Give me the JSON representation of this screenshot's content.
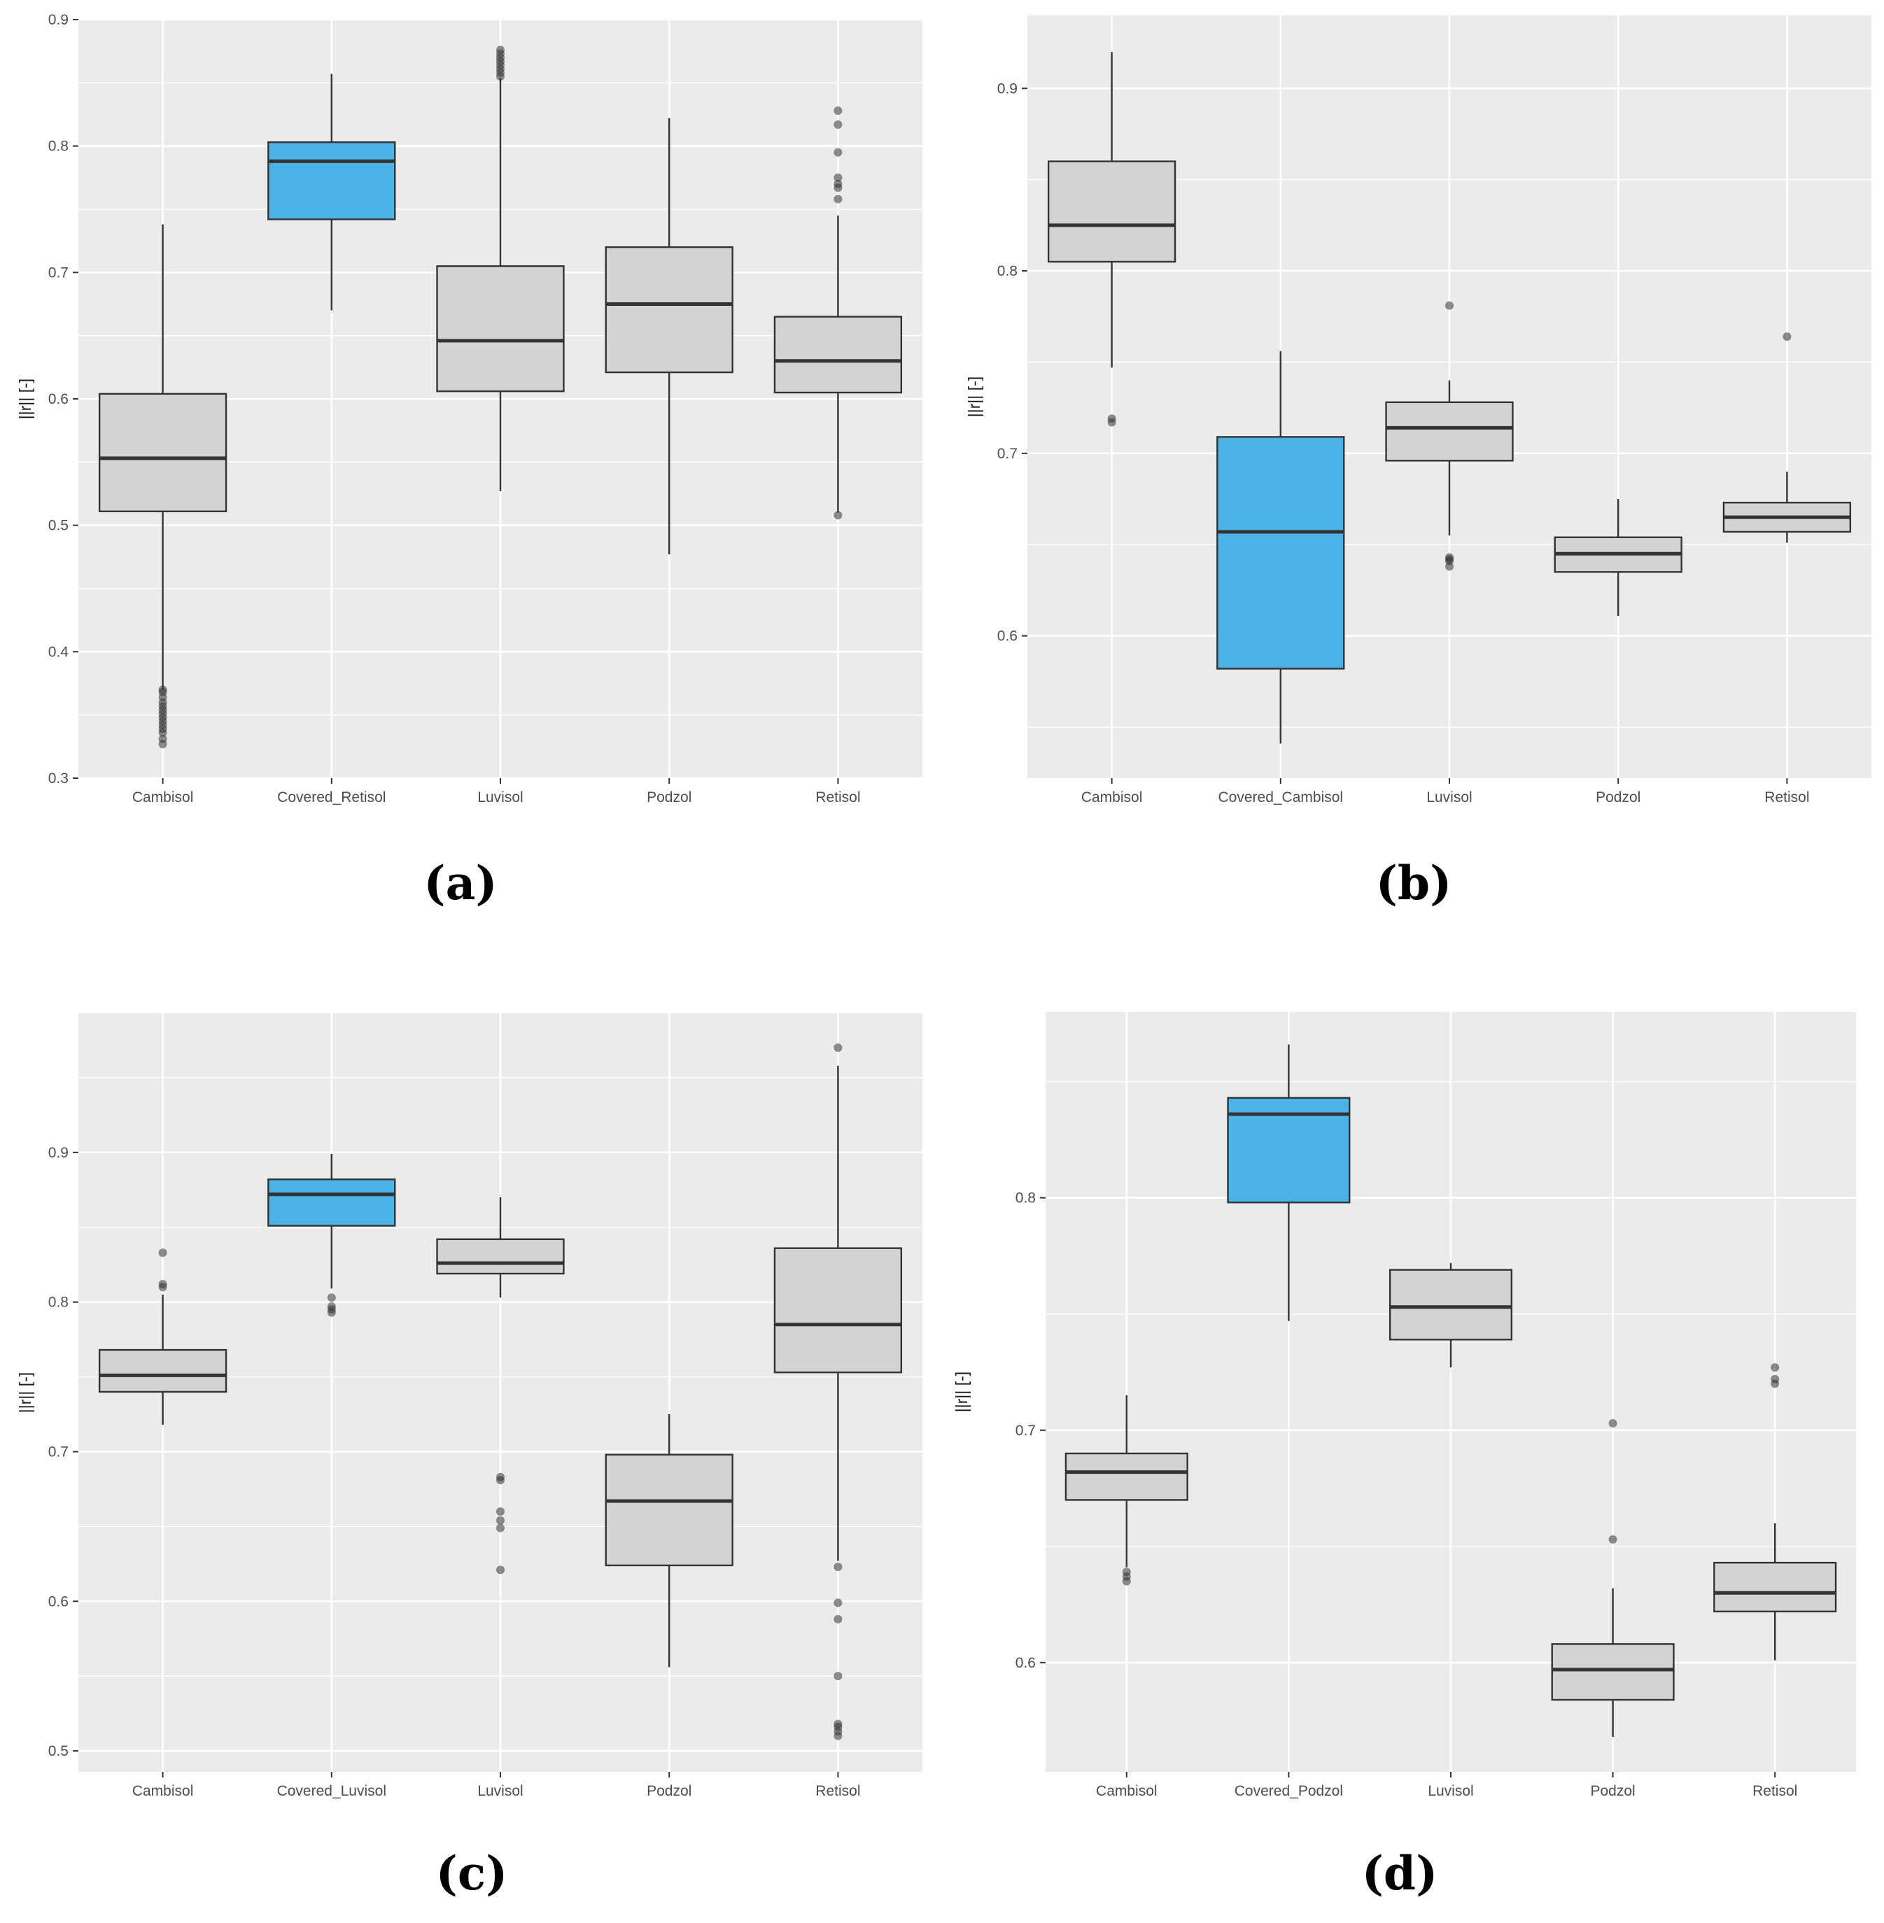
{
  "figure": {
    "fill_color": "#4DB3E6",
    "gray_fill": "#D3D3D3",
    "panel_bg": "#EBEBEB",
    "grid_color": "#FFFFFF",
    "outline": "#333333"
  },
  "chart_data": [
    {
      "type": "box",
      "panel_label": "(a)",
      "ylabel": "||r|| [-]",
      "ylim": [
        0.3,
        0.9
      ],
      "yticks": [
        0.3,
        0.4,
        0.5,
        0.6,
        0.7,
        0.8,
        0.9
      ],
      "ytick_labels": [
        "0.3",
        "0.4",
        "0.5",
        "0.6",
        "0.7",
        "0.8",
        "0.9"
      ],
      "categories": [
        "Cambisol",
        "Covered_Retisol",
        "Luvisol",
        "Podzol",
        "Retisol"
      ],
      "highlight": "Covered_Retisol",
      "boxes": [
        {
          "category": "Cambisol",
          "whisker_low": 0.37,
          "q1": 0.511,
          "median": 0.553,
          "q3": 0.604,
          "whisker_high": 0.738,
          "outliers": [
            0.327,
            0.331,
            0.336,
            0.339,
            0.342,
            0.345,
            0.348,
            0.351,
            0.354,
            0.357,
            0.36,
            0.364,
            0.368,
            0.37
          ]
        },
        {
          "category": "Covered_Retisol",
          "whisker_low": 0.67,
          "q1": 0.742,
          "median": 0.788,
          "q3": 0.803,
          "whisker_high": 0.857,
          "outliers": []
        },
        {
          "category": "Luvisol",
          "whisker_low": 0.527,
          "q1": 0.606,
          "median": 0.646,
          "q3": 0.705,
          "whisker_high": 0.854,
          "outliers": [
            0.855,
            0.858,
            0.861,
            0.864,
            0.867,
            0.87,
            0.873,
            0.876
          ]
        },
        {
          "category": "Podzol",
          "whisker_low": 0.477,
          "q1": 0.621,
          "median": 0.675,
          "q3": 0.72,
          "whisker_high": 0.822,
          "outliers": []
        },
        {
          "category": "Retisol",
          "whisker_low": 0.51,
          "q1": 0.605,
          "median": 0.63,
          "q3": 0.665,
          "whisker_high": 0.745,
          "outliers": [
            0.508,
            0.758,
            0.767,
            0.77,
            0.775,
            0.795,
            0.817,
            0.828
          ]
        }
      ]
    },
    {
      "type": "box",
      "panel_label": "(b)",
      "ylabel": "||r|| [-]",
      "ylim": [
        0.522,
        0.94
      ],
      "yticks": [
        0.6,
        0.7,
        0.8,
        0.9
      ],
      "ytick_labels": [
        "0.6",
        "0.7",
        "0.8",
        "0.9"
      ],
      "categories": [
        "Cambisol",
        "Covered_Cambisol",
        "Luvisol",
        "Podzol",
        "Retisol"
      ],
      "highlight": "Covered_Cambisol",
      "boxes": [
        {
          "category": "Cambisol",
          "whisker_low": 0.747,
          "q1": 0.805,
          "median": 0.825,
          "q3": 0.86,
          "whisker_high": 0.92,
          "outliers": [
            0.717,
            0.719
          ]
        },
        {
          "category": "Covered_Cambisol",
          "whisker_low": 0.541,
          "q1": 0.582,
          "median": 0.657,
          "q3": 0.709,
          "whisker_high": 0.756,
          "outliers": []
        },
        {
          "category": "Luvisol",
          "whisker_low": 0.655,
          "q1": 0.696,
          "median": 0.714,
          "q3": 0.728,
          "whisker_high": 0.74,
          "outliers": [
            0.638,
            0.641,
            0.642,
            0.643,
            0.781
          ]
        },
        {
          "category": "Podzol",
          "whisker_low": 0.611,
          "q1": 0.635,
          "median": 0.645,
          "q3": 0.654,
          "whisker_high": 0.675,
          "outliers": []
        },
        {
          "category": "Retisol",
          "whisker_low": 0.651,
          "q1": 0.657,
          "median": 0.665,
          "q3": 0.673,
          "whisker_high": 0.69,
          "outliers": [
            0.764
          ]
        }
      ]
    },
    {
      "type": "box",
      "panel_label": "(c)",
      "ylabel": "||r|| [-]",
      "ylim": [
        0.486,
        0.993
      ],
      "yticks": [
        0.5,
        0.6,
        0.7,
        0.8,
        0.9
      ],
      "ytick_labels": [
        "0.5",
        "0.6",
        "0.7",
        "0.8",
        "0.9"
      ],
      "categories": [
        "Cambisol",
        "Covered_Luvisol",
        "Luvisol",
        "Podzol",
        "Retisol"
      ],
      "highlight": "Covered_Luvisol",
      "boxes": [
        {
          "category": "Cambisol",
          "whisker_low": 0.718,
          "q1": 0.74,
          "median": 0.751,
          "q3": 0.768,
          "whisker_high": 0.805,
          "outliers": [
            0.81,
            0.812,
            0.833
          ]
        },
        {
          "category": "Covered_Luvisol",
          "whisker_low": 0.809,
          "q1": 0.851,
          "median": 0.872,
          "q3": 0.882,
          "whisker_high": 0.899,
          "outliers": [
            0.793,
            0.795,
            0.797,
            0.803
          ]
        },
        {
          "category": "Luvisol",
          "whisker_low": 0.803,
          "q1": 0.819,
          "median": 0.826,
          "q3": 0.842,
          "whisker_high": 0.87,
          "outliers": [
            0.621,
            0.649,
            0.654,
            0.66,
            0.681,
            0.683
          ]
        },
        {
          "category": "Podzol",
          "whisker_low": 0.556,
          "q1": 0.624,
          "median": 0.667,
          "q3": 0.698,
          "whisker_high": 0.725,
          "outliers": []
        },
        {
          "category": "Retisol",
          "whisker_low": 0.627,
          "q1": 0.753,
          "median": 0.785,
          "q3": 0.836,
          "whisker_high": 0.958,
          "outliers": [
            0.51,
            0.513,
            0.516,
            0.518,
            0.55,
            0.588,
            0.599,
            0.623,
            0.97
          ]
        }
      ]
    },
    {
      "type": "box",
      "panel_label": "(d)",
      "ylabel": "||r|| [-]",
      "ylim": [
        0.553,
        0.88
      ],
      "yticks": [
        0.6,
        0.7,
        0.8
      ],
      "ytick_labels": [
        "0.6",
        "0.7",
        "0.8"
      ],
      "categories": [
        "Cambisol",
        "Covered_Podzol",
        "Luvisol",
        "Podzol",
        "Retisol"
      ],
      "highlight": "Covered_Podzol",
      "boxes": [
        {
          "category": "Cambisol",
          "whisker_low": 0.641,
          "q1": 0.67,
          "median": 0.682,
          "q3": 0.69,
          "whisker_high": 0.715,
          "outliers": [
            0.635,
            0.637,
            0.639
          ]
        },
        {
          "category": "Covered_Podzol",
          "whisker_low": 0.747,
          "q1": 0.798,
          "median": 0.836,
          "q3": 0.843,
          "whisker_high": 0.866,
          "outliers": []
        },
        {
          "category": "Luvisol",
          "whisker_low": 0.727,
          "q1": 0.739,
          "median": 0.753,
          "q3": 0.769,
          "whisker_high": 0.772,
          "outliers": []
        },
        {
          "category": "Podzol",
          "whisker_low": 0.568,
          "q1": 0.584,
          "median": 0.597,
          "q3": 0.608,
          "whisker_high": 0.632,
          "outliers": [
            0.653,
            0.703
          ]
        },
        {
          "category": "Retisol",
          "whisker_low": 0.601,
          "q1": 0.622,
          "median": 0.63,
          "q3": 0.643,
          "whisker_high": 0.66,
          "outliers": [
            0.72,
            0.722,
            0.727
          ]
        }
      ]
    }
  ]
}
